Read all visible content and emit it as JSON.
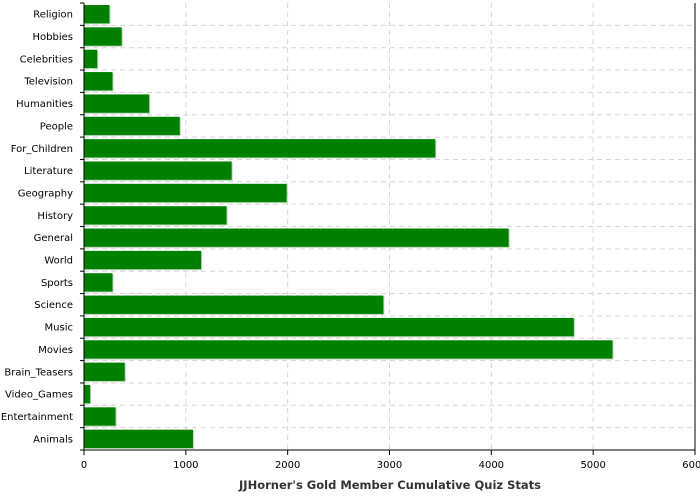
{
  "chart_data": {
    "type": "bar",
    "orientation": "horizontal",
    "title": "",
    "xlabel": "JJHorner's Gold Member Cumulative Quiz Stats",
    "ylabel": "",
    "xlim": [
      0,
      6000
    ],
    "xticks": [
      0,
      1000,
      2000,
      3000,
      4000,
      5000,
      6000
    ],
    "grid": true,
    "bar_color": "#008000",
    "categories": [
      "Religion",
      "Hobbies",
      "Celebrities",
      "Television",
      "Humanities",
      "People",
      "For_Children",
      "Literature",
      "Geography",
      "History",
      "General",
      "World",
      "Sports",
      "Science",
      "Music",
      "Movies",
      "Brain_Teasers",
      "Video_Games",
      "Entertainment",
      "Animals"
    ],
    "values": [
      250,
      370,
      130,
      280,
      640,
      940,
      3450,
      1450,
      1990,
      1400,
      4170,
      1150,
      280,
      2940,
      4810,
      5190,
      400,
      60,
      310,
      1070
    ]
  }
}
